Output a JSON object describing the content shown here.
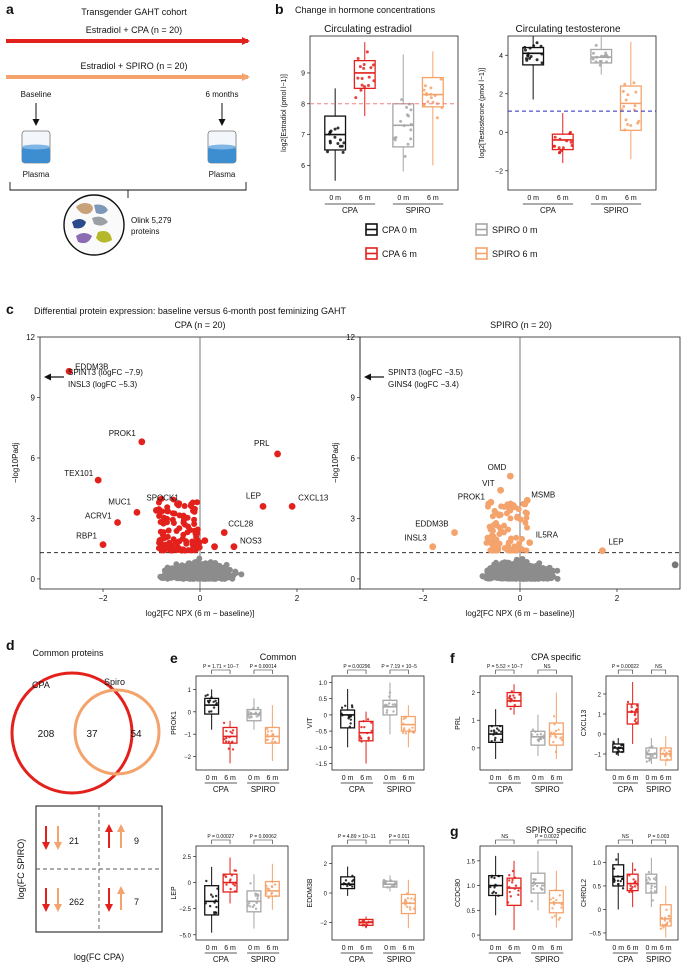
{
  "panels": {
    "a": "a",
    "b": "b",
    "c": "c",
    "d": "d",
    "e": "e",
    "f": "f",
    "g": "g"
  },
  "colors": {
    "cpa0": "#111111",
    "cpa6": "#e3211c",
    "spiro0": "#a6a6a6",
    "spiro6": "#f4a36c",
    "red": "#e3211c",
    "orange": "#f4a36c",
    "grey": "#8c8c8c",
    "blue": "#2a2ab8",
    "pink": "#f08080"
  },
  "a": {
    "cohort": "Transgender GAHT cohort",
    "arrow1": "Estradiol + CPA (n = 20)",
    "arrow2": "Estradiol + SPIRO (n = 20)",
    "baseline": "Baseline",
    "six_months": "6 months",
    "plasma_left": "Plasma",
    "plasma_right": "Plasma",
    "olink_line1": "Olink 5,279",
    "olink_line2": "proteins"
  },
  "b": {
    "title": "Change in hormone concentrations",
    "estradiol": {
      "title": "Circulating estradiol",
      "ylabel": "log2[Estradiol (pmol l−1)]",
      "ticks": [
        "9",
        "8",
        "7",
        "6"
      ],
      "groups": [
        "CPA",
        "SPIRO"
      ],
      "xticks": [
        "0 m",
        "6 m",
        "0 m",
        "6 m"
      ]
    },
    "testosterone": {
      "title": "Circulating testosterone",
      "ylabel": "log2[Testosterone (pmol l−1)]",
      "ticks": [
        "4",
        "2",
        "0",
        "−2"
      ],
      "groups": [
        "CPA",
        "SPIRO"
      ],
      "xticks": [
        "0 m",
        "6 m",
        "0 m",
        "6 m"
      ]
    },
    "legend": [
      "CPA 0 m",
      "SPIRO 0 m",
      "CPA 6 m",
      "SPIRO 6 m"
    ]
  },
  "c": {
    "title": "Differential protein expression: baseline versus 6-month post feminizing GAHT",
    "left": {
      "title": "CPA (n = 20)",
      "yticks": [
        "12",
        "9",
        "6",
        "3",
        "0"
      ],
      "xticks": [
        "−2",
        "0",
        "2"
      ],
      "xlabel": "log2[FC NPX (6 m − baseline)]",
      "ylabel": "−log10Padj",
      "arrow_line1": "SPINT3 (logFC −7.9)",
      "arrow_line2": "INSL3 (logFC −5.3)",
      "labels": [
        "EDDM3B",
        "PROK1",
        "TEX101",
        "SPOCK1",
        "MUC1",
        "ACRV1",
        "RBP1",
        "PRL",
        "LEP",
        "CXCL13",
        "CCL28",
        "NOS3"
      ]
    },
    "right": {
      "title": "SPIRO (n = 20)",
      "yticks": [
        "12",
        "9",
        "6",
        "3",
        "0"
      ],
      "xticks": [
        "−2",
        "0",
        "2"
      ],
      "xlabel": "log2[FC NPX (6 m − baseline)]",
      "ylabel": "−log10Padj",
      "arrow_line1": "SPINT3 (logFC −3.5)",
      "arrow_line2": "GINS4 (logFC −3.4)",
      "labels": [
        "OMD",
        "VIT",
        "PROK1",
        "MSMB",
        "EDDM3B",
        "INSL3",
        "IL5RA",
        "LEP"
      ]
    }
  },
  "d": {
    "title": "Common proteins",
    "cpa_label": "CPA",
    "spiro_label": "Spiro",
    "only_cpa": "208",
    "both": "37",
    "only_spiro": "54",
    "q_tl": "21",
    "q_tr": "9",
    "q_bl": "262",
    "q_br": "7",
    "xlabel": "log(FC CPA)",
    "ylabel": "log(FC SPIRO)"
  },
  "e": {
    "title": "Common",
    "plots": [
      {
        "name": "PROK1",
        "p1": "P = 1.71 × 10−7",
        "p2": "P = 0.00014",
        "ticks": [
          "1",
          "0",
          "−1",
          "−2"
        ]
      },
      {
        "name": "VIT",
        "p1": "P = 0.00296",
        "p2": "P = 7.19 × 10−5",
        "ticks": [
          "1.0",
          "0.5",
          "0",
          "−0.5",
          "−1.0",
          "−1.5"
        ]
      },
      {
        "name": "LEP",
        "p1": "P = 0.00027",
        "p2": "P = 0.00062",
        "ticks": [
          "2.5",
          "0",
          "−2.5",
          "−5.0"
        ]
      },
      {
        "name": "EDDM3B",
        "p1": "P = 4.89 × 10−11",
        "p2": "P = 0.011",
        "ticks": [
          "2",
          "0",
          "−2"
        ]
      }
    ],
    "groups": [
      "CPA",
      "SPIRO"
    ],
    "xticks": [
      "0 m",
      "6 m",
      "0 m",
      "6 m"
    ]
  },
  "f": {
    "title": "CPA specific",
    "plots": [
      {
        "name": "PRL",
        "p1": "P = 5.52 × 10−7",
        "p2": "NS",
        "ticks": [
          "2",
          "1",
          "0"
        ]
      },
      {
        "name": "CXCL13",
        "p1": "P = 0.00022",
        "p2": "NS",
        "ticks": [
          "2",
          "1",
          "0",
          "−1"
        ]
      }
    ]
  },
  "g": {
    "title": "SPIRO specific",
    "plots": [
      {
        "name": "CCDC80",
        "p1": "NS",
        "p2": "P = 0.0022",
        "ticks": [
          "1.5",
          "1.0",
          "0.5",
          "0"
        ]
      },
      {
        "name": "CHRDL2",
        "p1": "NS",
        "p2": "P = 0.003",
        "ticks": [
          "1.0",
          "0.5",
          "0",
          "−0.5"
        ]
      }
    ]
  }
}
